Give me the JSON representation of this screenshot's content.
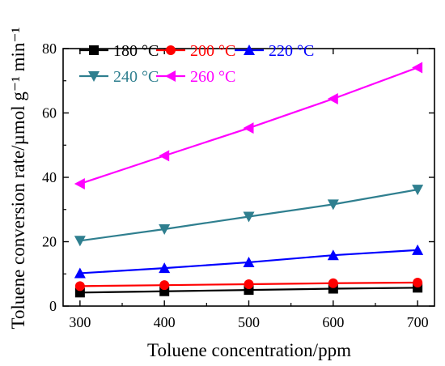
{
  "chart_data": {
    "type": "line",
    "title": "",
    "xlabel": "Toluene concentration/ppm",
    "ylabel": "Toluene conversion rate/µmol g⁻¹ min⁻¹",
    "x": [
      300,
      400,
      500,
      600,
      700
    ],
    "xlim": [
      280,
      720
    ],
    "ylim": [
      0,
      80
    ],
    "xticks": [
      "300",
      "400",
      "500",
      "600",
      "700"
    ],
    "yticks": [
      "0",
      "20",
      "40",
      "60",
      "80"
    ],
    "grid": false,
    "legend_position": "top-left",
    "series": [
      {
        "name": "180 °C",
        "color": "#000000",
        "marker": "square",
        "values": [
          4.2,
          4.6,
          5.0,
          5.4,
          5.7
        ]
      },
      {
        "name": "200 °C",
        "color": "#ff0000",
        "marker": "circle",
        "values": [
          6.2,
          6.5,
          6.8,
          7.1,
          7.3
        ]
      },
      {
        "name": "220 °C",
        "color": "#0000ff",
        "marker": "triangle-up",
        "values": [
          10.2,
          11.8,
          13.6,
          15.8,
          17.4
        ]
      },
      {
        "name": "240 °C",
        "color": "#2f7f8f",
        "marker": "triangle-down",
        "values": [
          20.3,
          23.9,
          27.8,
          31.6,
          36.2
        ]
      },
      {
        "name": "260 °C",
        "color": "#ff00ff",
        "marker": "triangle-left",
        "values": [
          38.0,
          46.7,
          55.3,
          64.4,
          74.1
        ]
      }
    ]
  }
}
